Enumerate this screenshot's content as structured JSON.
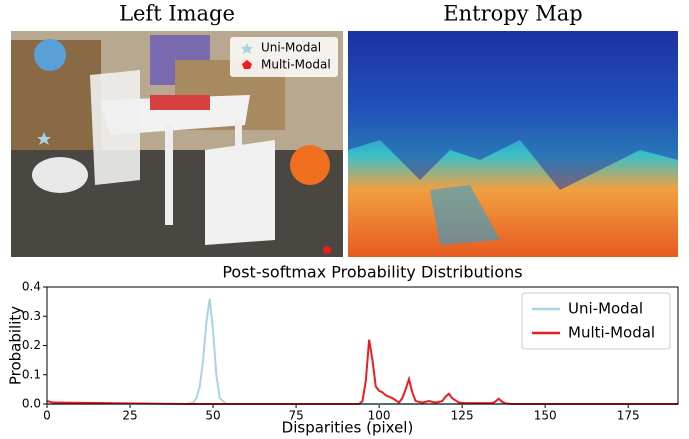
{
  "images": {
    "left": {
      "title": "Left Image",
      "legend": [
        "Uni-Modal",
        "Multi-Modal"
      ]
    },
    "right": {
      "title": "Entropy Map"
    }
  },
  "chart_data": {
    "type": "line",
    "title": "Post-softmax Probability Distributions",
    "x_label": "Disparities (pixel)",
    "y_label": "Probability",
    "x": [
      0,
      2,
      42,
      44,
      45,
      46,
      47,
      48,
      49,
      50,
      51,
      52,
      54,
      90,
      94,
      95,
      96,
      97,
      98,
      99,
      100,
      101,
      102,
      104,
      106,
      107,
      108,
      109,
      110,
      111,
      113,
      115,
      117,
      119,
      120,
      121,
      122,
      124,
      126,
      134,
      135,
      136,
      137,
      138,
      140,
      190
    ],
    "series": [
      {
        "name": "Uni-Modal",
        "color": "#a8d4e4",
        "values": [
          0,
          0,
          0,
          0.005,
          0.02,
          0.06,
          0.15,
          0.28,
          0.36,
          0.25,
          0.1,
          0.02,
          0,
          0,
          0,
          0,
          0,
          0,
          0,
          0,
          0,
          0,
          0,
          0,
          0,
          0,
          0,
          0,
          0,
          0,
          0,
          0,
          0,
          0,
          0,
          0,
          0,
          0,
          0,
          0,
          0,
          0,
          0,
          0,
          0,
          0
        ]
      },
      {
        "name": "Multi-Modal",
        "color": "#ee1c1c",
        "values": [
          0.01,
          0.005,
          0,
          0,
          0,
          0,
          0,
          0,
          0,
          0,
          0,
          0,
          0,
          0,
          0,
          0.01,
          0.08,
          0.22,
          0.15,
          0.06,
          0.045,
          0.04,
          0.03,
          0.02,
          0.005,
          0.02,
          0.05,
          0.085,
          0.04,
          0.01,
          0.005,
          0.01,
          0.005,
          0.01,
          0.025,
          0.035,
          0.02,
          0.005,
          0.003,
          0.003,
          0.008,
          0.018,
          0.008,
          0.002,
          0,
          0
        ]
      }
    ],
    "xlim": [
      0,
      190
    ],
    "xticks": [
      0,
      25,
      50,
      75,
      100,
      125,
      150,
      175
    ],
    "ylim": [
      0,
      0.4
    ],
    "yticks": [
      {
        "value": 0,
        "label": "0.0"
      },
      0.1,
      0.2,
      0.3,
      0.4
    ],
    "legend": "upper right"
  }
}
